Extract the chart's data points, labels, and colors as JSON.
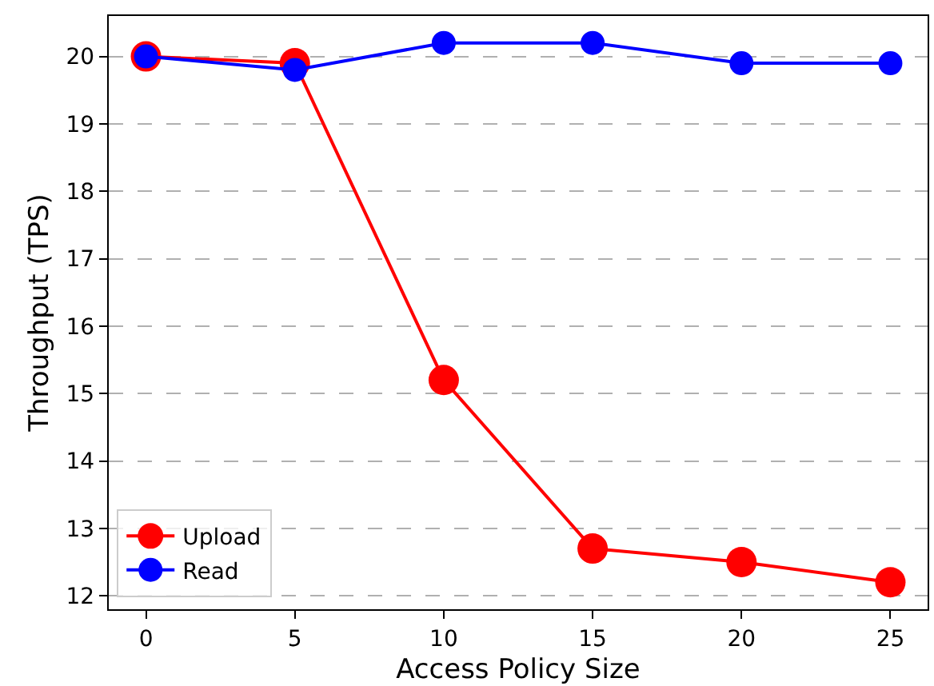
{
  "chart_data": {
    "type": "line",
    "xlabel": "Access Policy Size",
    "ylabel": "Throughput (TPS)",
    "x": [
      0,
      5,
      10,
      15,
      20,
      25
    ],
    "series": [
      {
        "name": "Upload",
        "color": "#ff0000",
        "values": [
          20.0,
          19.9,
          15.2,
          12.7,
          12.5,
          12.2
        ]
      },
      {
        "name": "Read",
        "color": "#0000ff",
        "values": [
          20.0,
          19.8,
          20.2,
          20.2,
          19.9,
          19.9
        ]
      }
    ],
    "xlim": [
      -1.25,
      26.25
    ],
    "xticks": [
      0,
      5,
      10,
      15,
      20,
      25
    ],
    "ylim": [
      11.8,
      20.6
    ],
    "yticks": [
      12,
      13,
      14,
      15,
      16,
      17,
      18,
      19,
      20
    ],
    "grid": "y",
    "legend": "bottom left",
    "marker": "circle",
    "line_style": "solid"
  }
}
